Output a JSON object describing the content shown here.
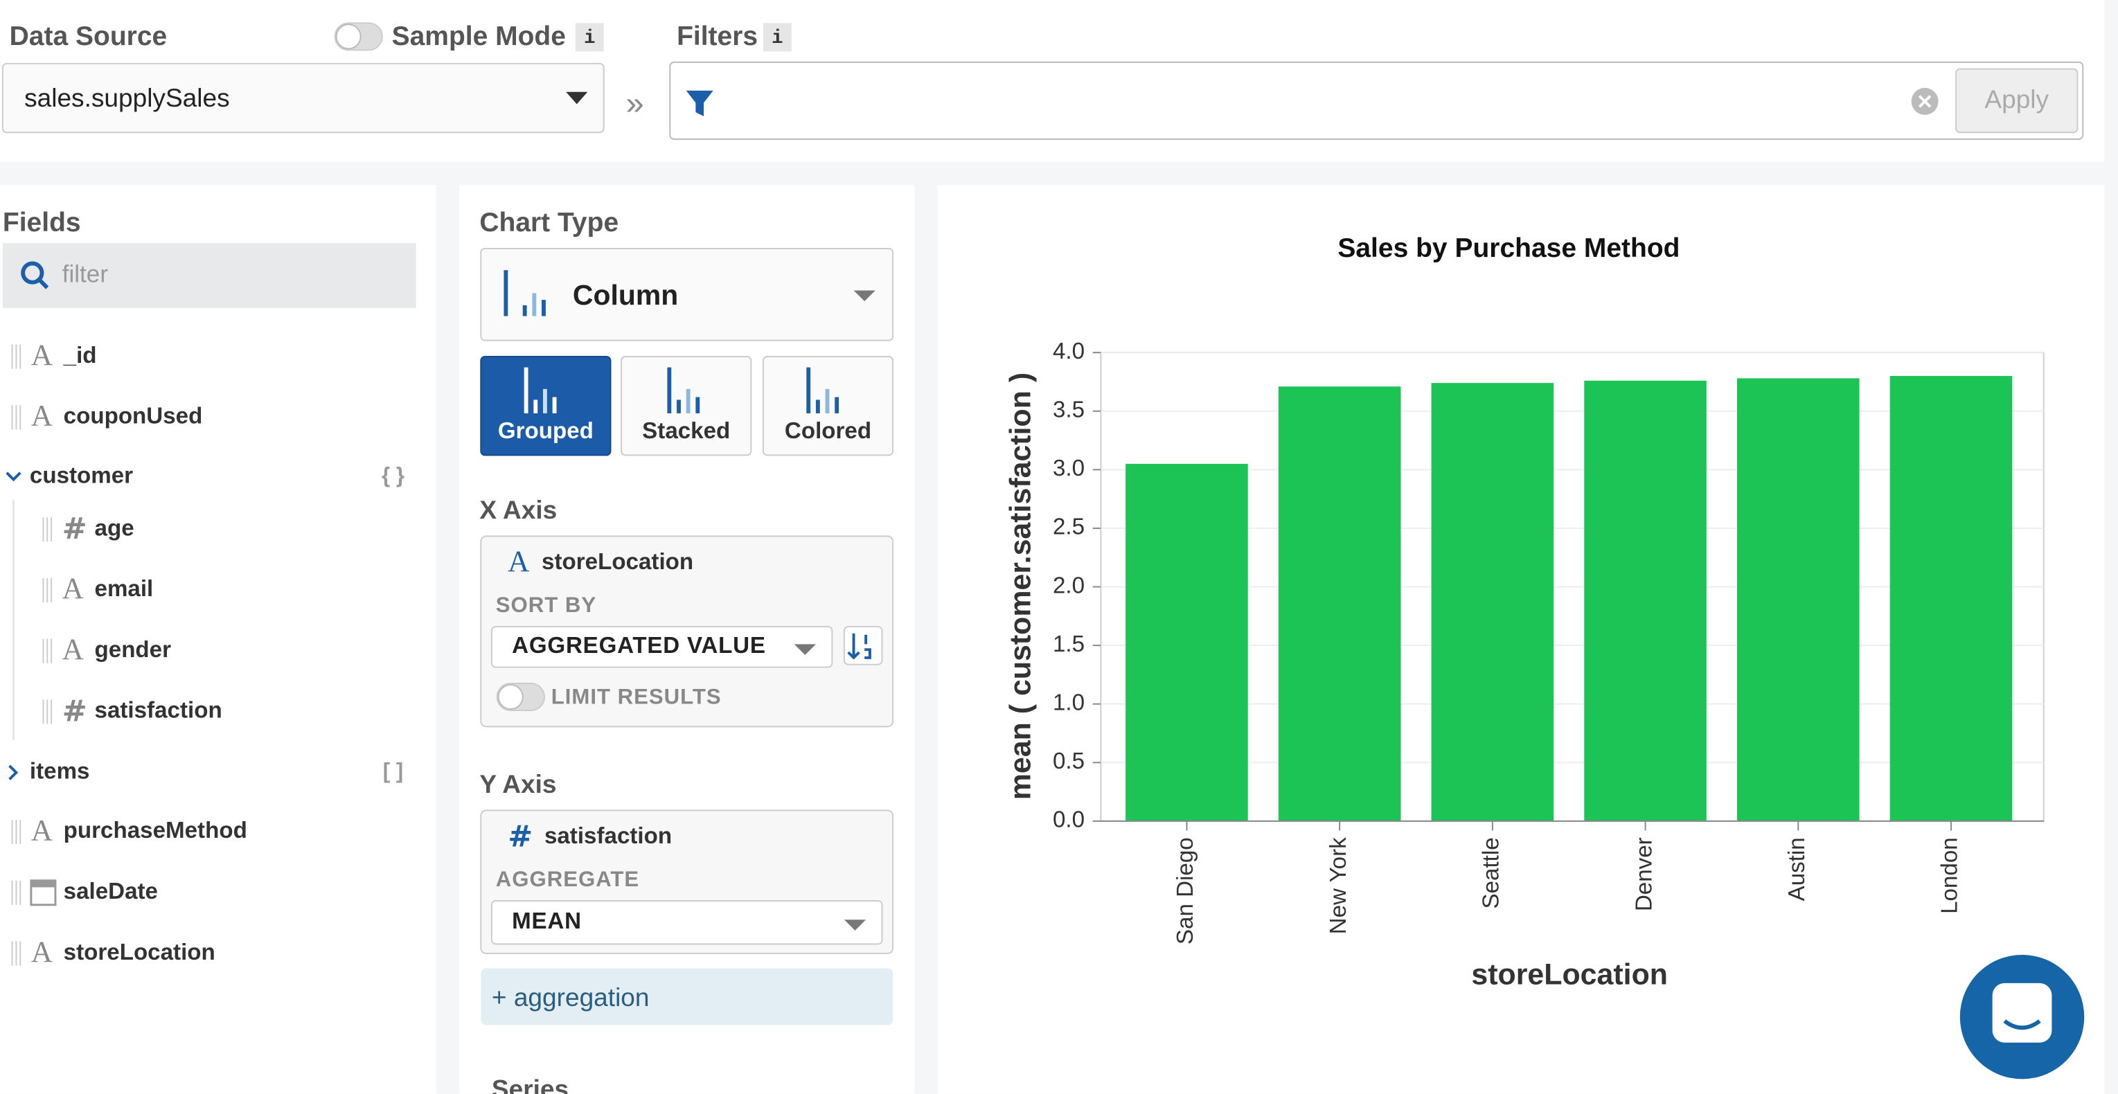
{
  "header": {
    "data_source_label": "Data Source",
    "sample_mode_label": "Sample Mode",
    "info": "i",
    "filters_label": "Filters",
    "data_source": "sales.supplySales",
    "separator": "»",
    "apply": "Apply"
  },
  "fields": {
    "title": "Fields",
    "placeholder": "filter",
    "items": [
      {
        "icon": "A",
        "name": "_id",
        "level": 0
      },
      {
        "icon": "A",
        "name": "couponUsed",
        "level": 0
      },
      {
        "name": "customer",
        "level": 0,
        "group": "{ }",
        "expanded": true
      },
      {
        "icon": "#",
        "name": "age",
        "level": 1
      },
      {
        "icon": "A",
        "name": "email",
        "level": 1
      },
      {
        "icon": "A",
        "name": "gender",
        "level": 1
      },
      {
        "icon": "#",
        "name": "satisfaction",
        "level": 1
      },
      {
        "name": "items",
        "level": 0,
        "group": "[ ]",
        "expanded": false
      },
      {
        "icon": "A",
        "name": "purchaseMethod",
        "level": 0
      },
      {
        "icon": "date",
        "name": "saleDate",
        "level": 0
      },
      {
        "icon": "A",
        "name": "storeLocation",
        "level": 0
      }
    ]
  },
  "encode": {
    "chart_type_label": "Chart Type",
    "chart_type": "Column",
    "variants": [
      "Grouped",
      "Stacked",
      "Colored"
    ],
    "selected_variant": 0,
    "x_axis": {
      "label": "X Axis",
      "icon": "A",
      "field": "storeLocation",
      "sort_label": "SORT BY",
      "sort": "AGGREGATED VALUE",
      "limit": "LIMIT RESULTS"
    },
    "y_axis": {
      "label": "Y Axis",
      "icon": "#",
      "field": "satisfaction",
      "aggregate_label": "AGGREGATE",
      "aggregate": "MEAN"
    },
    "add_aggregation": "+ aggregation",
    "series_label": "Series"
  },
  "chart_data": {
    "type": "bar",
    "title": "Sales by Purchase Method",
    "x_label": "storeLocation",
    "y_label": "mean ( customer.satisfaction )",
    "categories": [
      "San Diego",
      "New York",
      "Seattle",
      "Denver",
      "Austin",
      "London"
    ],
    "values": [
      3.05,
      3.71,
      3.74,
      3.76,
      3.78,
      3.8
    ],
    "color": "#1bc454",
    "ylim": [
      0,
      4
    ],
    "yticks": [
      {
        "value": 0,
        "label": "0.0"
      },
      0.5,
      {
        "value": 1,
        "label": "1.0"
      },
      1.5,
      {
        "value": 2,
        "label": "2.0"
      },
      2.5,
      {
        "value": 3,
        "label": "3.0"
      },
      3.5,
      {
        "value": 4,
        "label": "4.0"
      }
    ],
    "grid": true
  }
}
